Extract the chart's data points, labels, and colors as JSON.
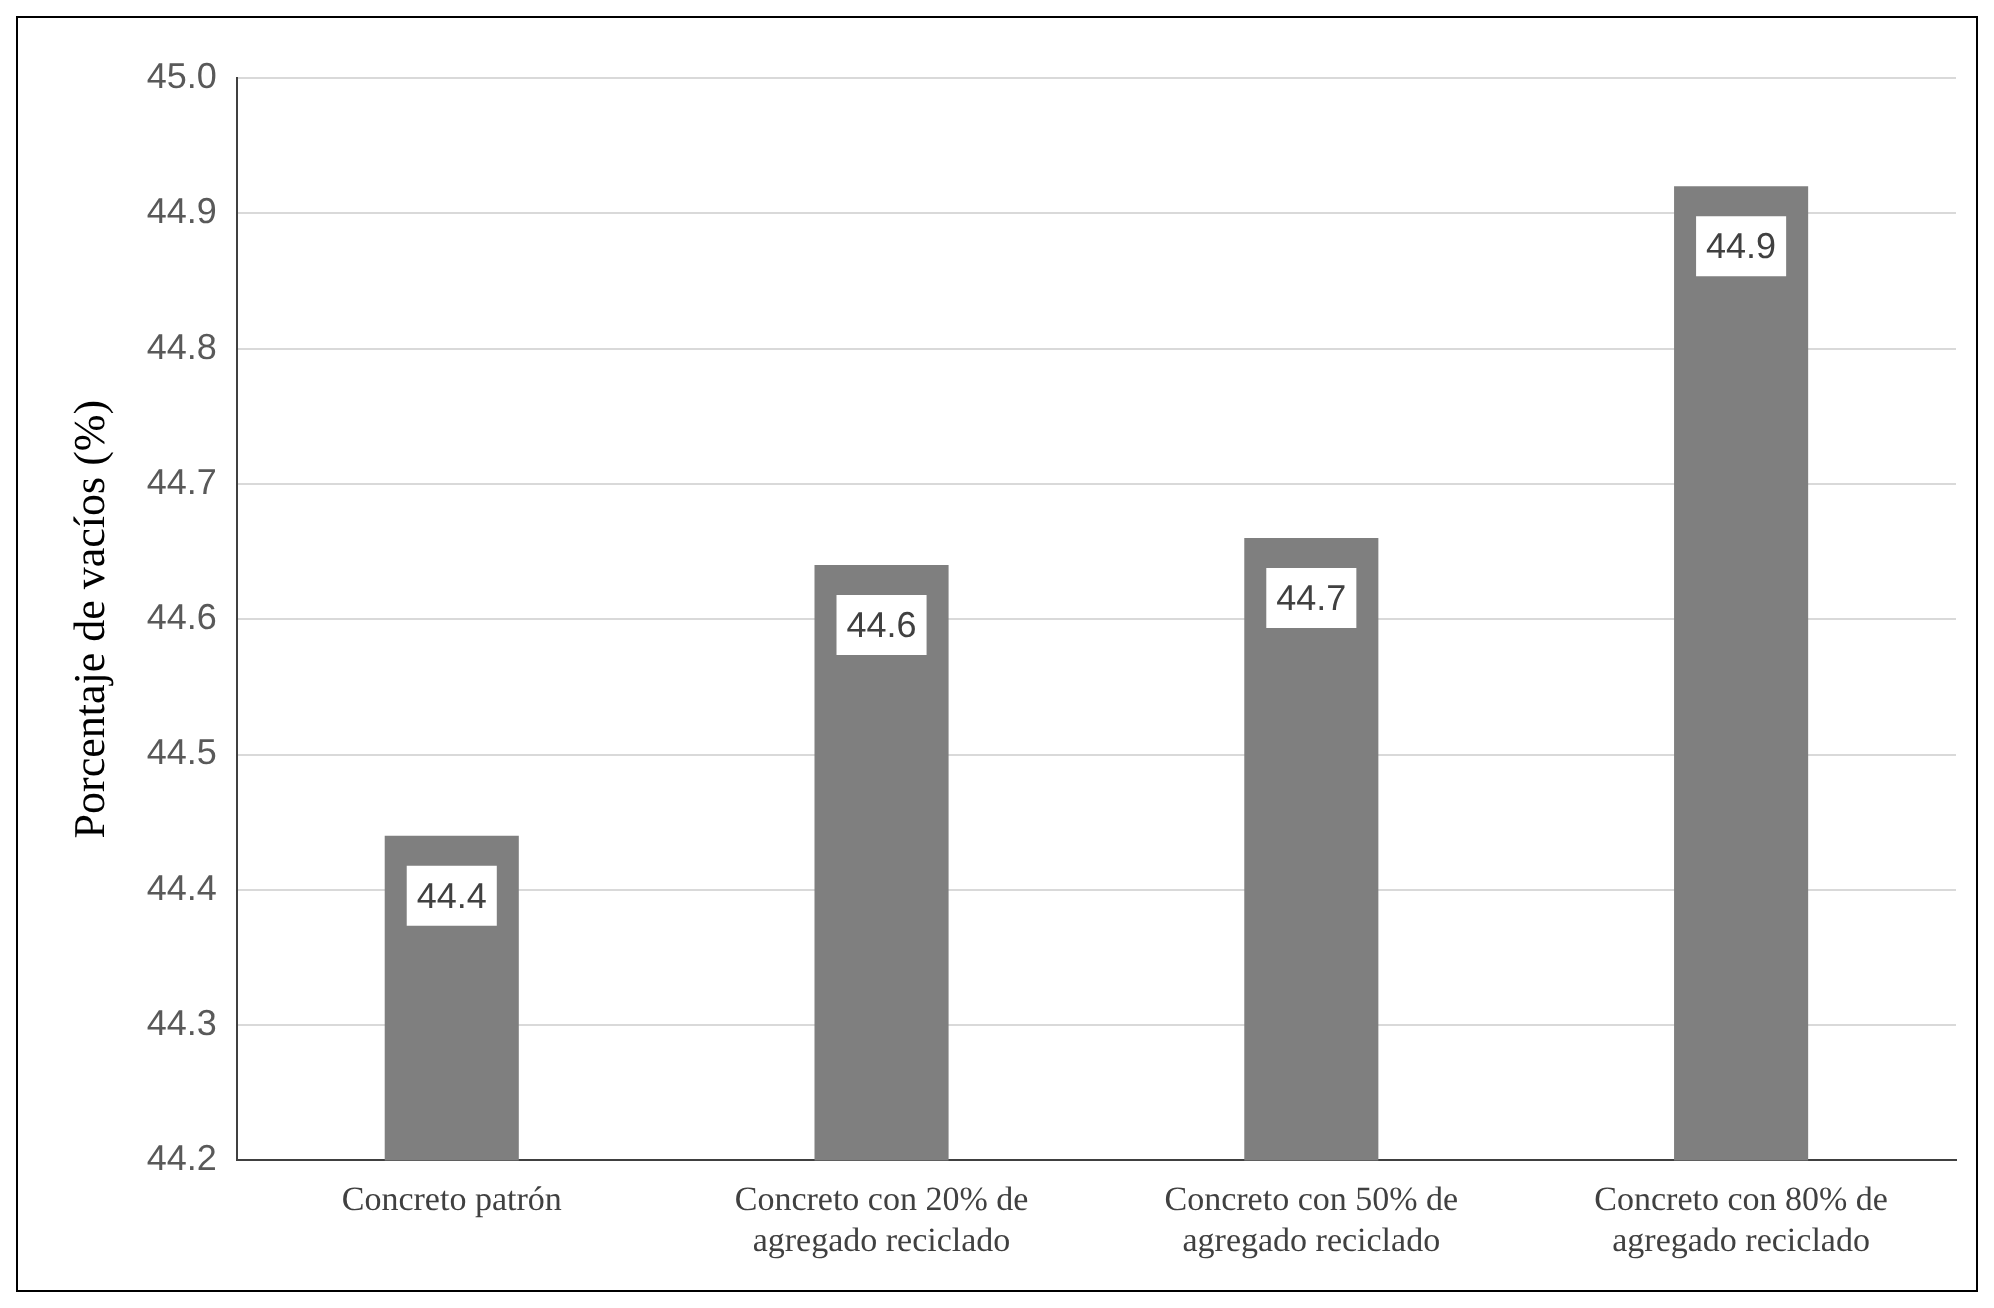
{
  "chart_data": {
    "type": "bar",
    "ylabel": "Porcentaje de vacíos (%)",
    "categories": [
      "Concreto patrón",
      "Concreto con 20% de agregado reciclado",
      "Concreto con 50% de agregado reciclado",
      "Concreto con 80% de agregado reciclado"
    ],
    "values": [
      44.44,
      44.64,
      44.66,
      44.92
    ],
    "value_labels": [
      "44.4",
      "44.6",
      "44.7",
      "44.9"
    ],
    "color": "#7f7f7f",
    "ylim": [
      44.2,
      45.0
    ],
    "yticks": [
      44.2,
      44.3,
      44.4,
      44.5,
      44.6,
      44.7,
      44.8,
      44.9,
      {
        "value": 45,
        "label": "45.0"
      }
    ],
    "grid": "y",
    "legend": false
  }
}
